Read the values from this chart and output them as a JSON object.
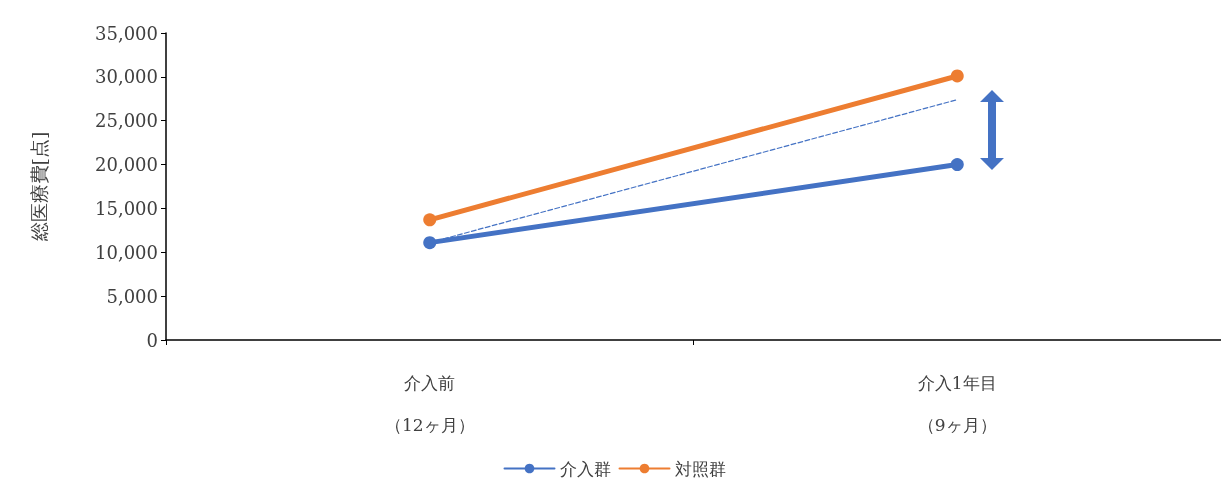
{
  "chart_data": {
    "type": "line",
    "ylabel": "総医療費[点]",
    "categories": [
      "介入前（12ヶ月）",
      "介入1年目（9ヶ月）"
    ],
    "series": [
      {
        "name": "介入群",
        "color": "#4472c4",
        "values": [
          11100,
          20000
        ]
      },
      {
        "name": "対照群",
        "color": "#ed7d31",
        "values": [
          13700,
          30100
        ]
      },
      {
        "color": "#4472c4",
        "values": [
          11100,
          27400
        ],
        "line_style": "dashed",
        "marker": "none"
      }
    ],
    "ylim": [
      0,
      35000
    ],
    "yticks": [
      0,
      {
        "value": 5000,
        "label": "5,000"
      },
      {
        "value": 10000,
        "label": "10,000"
      },
      {
        "value": 15000,
        "label": "15,000"
      },
      {
        "value": 20000,
        "label": "20,000"
      },
      {
        "value": 25000,
        "label": "25,000"
      },
      {
        "value": 30000,
        "label": "30,000"
      },
      {
        "value": 35000,
        "label": "35,000"
      }
    ],
    "grid": false,
    "legend": "bottom",
    "marker": "circle",
    "line_style": "solid"
  }
}
